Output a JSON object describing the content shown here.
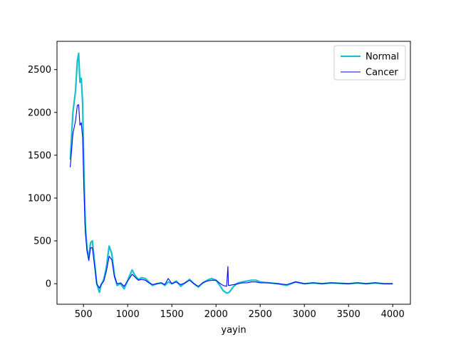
{
  "chart_data": {
    "type": "line",
    "title": "",
    "xlabel": "yayin",
    "ylabel": "",
    "xlim": [
      200,
      4200
    ],
    "ylim": [
      -240,
      2830
    ],
    "xticks": [
      500,
      1000,
      1500,
      2000,
      2500,
      3000,
      3500,
      4000
    ],
    "yticks": [
      0,
      500,
      1000,
      1500,
      2000,
      2500
    ],
    "grid": false,
    "legend_position": "top-right",
    "series": [
      {
        "name": "Normal",
        "color": "#17becf",
        "x": [
          350,
          380,
          410,
          430,
          445,
          460,
          475,
          490,
          505,
          520,
          540,
          560,
          580,
          600,
          620,
          650,
          680,
          700,
          730,
          760,
          790,
          820,
          850,
          880,
          920,
          960,
          1000,
          1050,
          1080,
          1120,
          1160,
          1200,
          1240,
          1280,
          1330,
          1380,
          1420,
          1460,
          1500,
          1550,
          1600,
          1650,
          1700,
          1750,
          1800,
          1850,
          1900,
          1950,
          2000,
          2050,
          2080,
          2120,
          2150,
          2200,
          2250,
          2300,
          2350,
          2400,
          2450,
          2500,
          2600,
          2700,
          2800,
          2900,
          3000,
          3100,
          3200,
          3300,
          3400,
          3500,
          3600,
          3700,
          3800,
          3900,
          4000
        ],
        "y": [
          1450,
          2000,
          2250,
          2600,
          2690,
          2350,
          2400,
          2100,
          1300,
          700,
          400,
          300,
          480,
          500,
          300,
          0,
          -100,
          -10,
          50,
          200,
          440,
          350,
          100,
          -20,
          0,
          -60,
          40,
          160,
          100,
          50,
          70,
          60,
          20,
          -20,
          0,
          10,
          -20,
          20,
          0,
          30,
          -30,
          10,
          50,
          0,
          -40,
          10,
          40,
          60,
          40,
          -30,
          -80,
          -110,
          -100,
          -30,
          10,
          20,
          30,
          40,
          40,
          20,
          10,
          0,
          -20,
          20,
          0,
          10,
          0,
          10,
          5,
          0,
          10,
          0,
          10,
          0,
          0
        ]
      },
      {
        "name": "Cancer",
        "color": "#0000ff",
        "x": [
          350,
          380,
          410,
          430,
          445,
          460,
          475,
          490,
          505,
          520,
          540,
          560,
          580,
          600,
          620,
          650,
          680,
          700,
          730,
          760,
          790,
          820,
          850,
          880,
          920,
          960,
          1000,
          1050,
          1080,
          1120,
          1160,
          1200,
          1240,
          1280,
          1330,
          1380,
          1420,
          1460,
          1500,
          1550,
          1600,
          1650,
          1700,
          1750,
          1800,
          1850,
          1900,
          1950,
          2000,
          2050,
          2080,
          2120,
          2135,
          2140,
          2150,
          2200,
          2250,
          2300,
          2350,
          2400,
          2450,
          2500,
          2600,
          2700,
          2800,
          2900,
          3000,
          3100,
          3200,
          3300,
          3400,
          3500,
          3600,
          3700,
          3800,
          3900,
          4000
        ],
        "y": [
          1360,
          1750,
          1900,
          2080,
          2090,
          1850,
          1880,
          1700,
          1100,
          600,
          380,
          270,
          420,
          420,
          250,
          0,
          -50,
          -10,
          30,
          150,
          320,
          280,
          80,
          0,
          10,
          -30,
          30,
          110,
          80,
          40,
          50,
          40,
          10,
          -10,
          0,
          10,
          -10,
          60,
          0,
          20,
          -10,
          10,
          40,
          0,
          -30,
          10,
          30,
          40,
          40,
          0,
          -20,
          -30,
          200,
          -20,
          -20,
          -10,
          0,
          10,
          10,
          20,
          20,
          10,
          10,
          0,
          -10,
          20,
          0,
          10,
          0,
          10,
          5,
          0,
          10,
          0,
          10,
          0,
          0
        ]
      }
    ]
  }
}
